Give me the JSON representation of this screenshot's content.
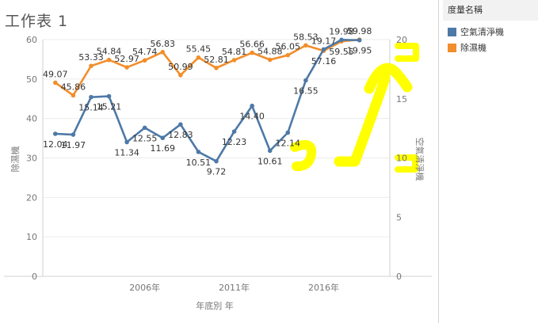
{
  "sheet": {
    "title": "工作表 1"
  },
  "legend": {
    "title": "度量名稱",
    "items": [
      {
        "label": "空氣清淨機",
        "color": "#4e79a7"
      },
      {
        "label": "除濕機",
        "color": "#f28e2b"
      }
    ]
  },
  "chart_data": {
    "type": "line",
    "x": [
      2001,
      2002,
      2003,
      2004,
      2005,
      2006,
      2007,
      2008,
      2009,
      2010,
      2011,
      2012,
      2013,
      2014,
      2015,
      2016,
      2017,
      2018
    ],
    "xlabel": "年底別 年",
    "x_tick_labels": [
      "2006年",
      "2011年",
      "2016年"
    ],
    "x_ticks": [
      2006,
      2011,
      2016
    ],
    "xlim": [
      2000.3,
      2019.7
    ],
    "ylabel_left": "除濕機",
    "ylabel_right": "空氣清淨機",
    "ylim_left": [
      0,
      60
    ],
    "ylim_right": [
      0,
      20
    ],
    "yticks_left": [
      0,
      10,
      20,
      30,
      40,
      50,
      60
    ],
    "yticks_right": [
      0,
      5,
      10,
      15,
      20
    ],
    "series": [
      {
        "name": "空氣清淨機",
        "axis": "right",
        "color": "#4e79a7",
        "values": [
          12.04,
          11.97,
          15.14,
          15.21,
          11.34,
          12.55,
          11.69,
          12.83,
          10.51,
          9.72,
          12.23,
          14.4,
          10.61,
          12.14,
          16.55,
          19.17,
          19.98,
          19.95
        ],
        "labels": [
          "12.04",
          "11.97",
          "15.14",
          "15.21",
          "11.34",
          "12.55",
          "11.69",
          "12.83",
          "10.51",
          "9.72",
          "12.23",
          "14.40",
          "10.61",
          "12.14",
          "16.55",
          "19.17",
          "19.98",
          "19.95"
        ]
      },
      {
        "name": "除濕機",
        "axis": "left",
        "color": "#f28e2b",
        "values": [
          49.07,
          45.86,
          53.33,
          54.84,
          52.97,
          54.74,
          56.83,
          50.99,
          55.45,
          52.81,
          54.81,
          56.66,
          54.88,
          56.05,
          58.53,
          57.16,
          59.55,
          59.98
        ],
        "labels": [
          "49.07",
          "45.86",
          "53.33",
          "54.84",
          "52.97",
          "54.74",
          "56.83",
          "50.99",
          "55.45",
          "52.81",
          "54.81",
          "56.66",
          "54.88",
          "56.05",
          "58.53",
          "57.16",
          "59.55",
          "59.98"
        ]
      }
    ],
    "annotations": [
      {
        "type": "handwritten-highlight",
        "color": "#ffff00"
      }
    ]
  }
}
